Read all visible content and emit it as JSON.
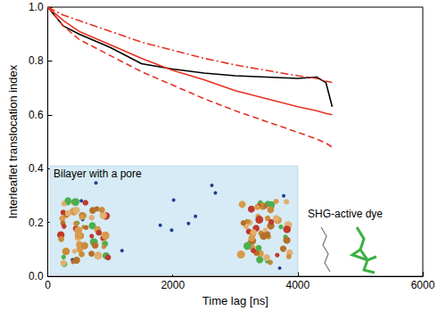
{
  "chart_data": {
    "type": "line",
    "xlabel": "Time lag [ns]",
    "ylabel": "Interleaflet translocation index",
    "x": [
      0,
      250,
      500,
      1000,
      1500,
      2000,
      2500,
      3000,
      3500,
      4000,
      4300,
      4450,
      4550
    ],
    "series": [
      {
        "color": "#000000",
        "line_style": "solid",
        "values": [
          1.0,
          0.93,
          0.9,
          0.85,
          0.79,
          0.77,
          0.755,
          0.745,
          0.74,
          0.735,
          0.74,
          0.72,
          0.63
        ]
      },
      {
        "color": "#e53222",
        "line_style": "solid",
        "values": [
          1.0,
          0.95,
          0.91,
          0.86,
          0.81,
          0.765,
          0.73,
          0.69,
          0.66,
          0.63,
          0.615,
          0.605,
          0.6
        ]
      },
      {
        "color": "#e53222",
        "line_style": "dashdot",
        "values": [
          1.0,
          0.97,
          0.95,
          0.91,
          0.87,
          0.84,
          0.81,
          0.785,
          0.765,
          0.745,
          0.735,
          0.725,
          0.72
        ]
      },
      {
        "color": "#e53222",
        "line_style": "dashed",
        "values": [
          1.0,
          0.93,
          0.88,
          0.82,
          0.76,
          0.71,
          0.66,
          0.615,
          0.575,
          0.535,
          0.51,
          0.495,
          0.48
        ]
      }
    ],
    "xlim": [
      0,
      6000
    ],
    "xticks": [
      0,
      2000,
      4000,
      6000
    ],
    "ylim": [
      0,
      1
    ],
    "yticks": [
      {
        "value": 0,
        "label": "0.0"
      },
      0.2,
      0.4,
      0.6,
      0.8,
      {
        "value": 1,
        "label": "1.0"
      }
    ],
    "grid": false,
    "annotations": [
      "Bilayer with a pore",
      "SHG-active dye"
    ]
  }
}
